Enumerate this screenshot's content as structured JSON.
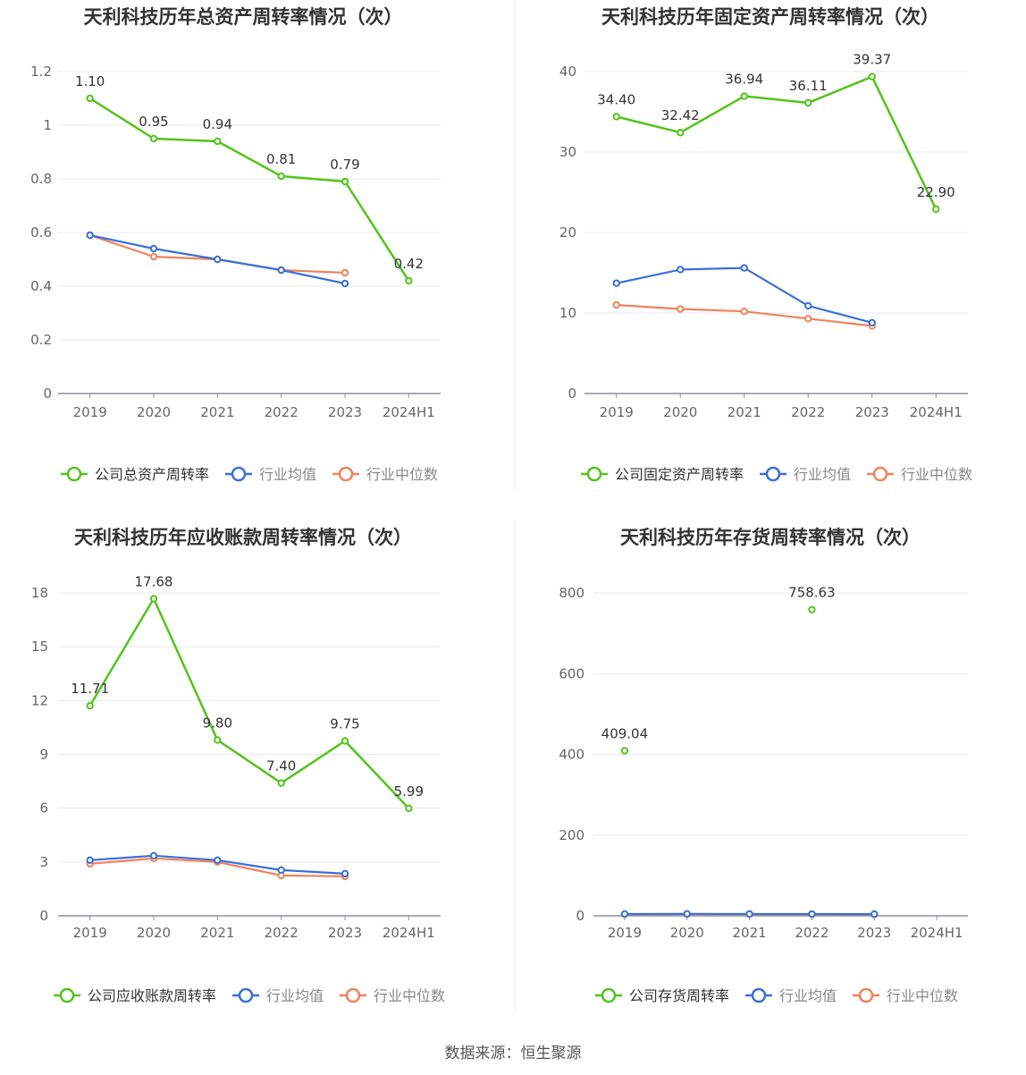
{
  "colors": {
    "company": "#52c41a",
    "industry_avg": "#3b6fd8",
    "industry_median": "#f0825a",
    "grid": "#e6e9f0",
    "axis": "#8c8f99",
    "tick_text": "#666666",
    "title": "#333333"
  },
  "footer": {
    "source": "数据来源：恒生聚源"
  },
  "chart_data": [
    {
      "type": "line",
      "title": "天利科技历年总资产周转率情况（次）",
      "categories": [
        "2019",
        "2020",
        "2021",
        "2022",
        "2023",
        "2024H1"
      ],
      "y_ticks": [
        "0",
        "0.2",
        "0.4",
        "0.6",
        "0.8",
        "1",
        "1.2"
      ],
      "ylim": [
        0,
        1.2
      ],
      "grid": true,
      "legend_position": "bottom",
      "series": [
        {
          "name": "公司总资产周转率",
          "role": "company",
          "values": [
            1.1,
            0.95,
            0.94,
            0.81,
            0.79,
            0.42
          ],
          "labels": [
            "1.10",
            "0.95",
            "0.94",
            "0.81",
            "0.79",
            "0.42"
          ]
        },
        {
          "name": "行业均值",
          "role": "avg",
          "values": [
            0.59,
            0.54,
            0.5,
            0.46,
            0.41,
            null
          ]
        },
        {
          "name": "行业中位数",
          "role": "median",
          "values": [
            0.59,
            0.51,
            0.5,
            0.46,
            0.45,
            null
          ]
        }
      ]
    },
    {
      "type": "line",
      "title": "天利科技历年固定资产周转率情况（次）",
      "categories": [
        "2019",
        "2020",
        "2021",
        "2022",
        "2023",
        "2024H1"
      ],
      "y_ticks": [
        "0",
        "10",
        "20",
        "30",
        "40"
      ],
      "ylim": [
        0,
        40
      ],
      "grid": true,
      "legend_position": "bottom",
      "series": [
        {
          "name": "公司固定资产周转率",
          "role": "company",
          "values": [
            34.4,
            32.42,
            36.94,
            36.11,
            39.37,
            22.9
          ],
          "labels": [
            "34.40",
            "32.42",
            "36.94",
            "36.11",
            "39.37",
            "22.90"
          ]
        },
        {
          "name": "行业均值",
          "role": "avg",
          "values": [
            13.7,
            15.4,
            15.6,
            10.9,
            8.8,
            null
          ]
        },
        {
          "name": "行业中位数",
          "role": "median",
          "values": [
            11.0,
            10.5,
            10.2,
            9.3,
            8.4,
            null
          ]
        }
      ]
    },
    {
      "type": "line",
      "title": "天利科技历年应收账款周转率情况（次）",
      "categories": [
        "2019",
        "2020",
        "2021",
        "2022",
        "2023",
        "2024H1"
      ],
      "y_ticks": [
        "0",
        "3",
        "6",
        "9",
        "12",
        "15",
        "18"
      ],
      "ylim": [
        0,
        18
      ],
      "grid": true,
      "legend_position": "bottom",
      "series": [
        {
          "name": "公司应收账款周转率",
          "role": "company",
          "values": [
            11.71,
            17.68,
            9.8,
            7.4,
            9.75,
            5.99
          ],
          "labels": [
            "11.71",
            "17.68",
            "9.80",
            "7.40",
            "9.75",
            "5.99"
          ]
        },
        {
          "name": "行业均值",
          "role": "avg",
          "values": [
            3.1,
            3.35,
            3.1,
            2.55,
            2.35,
            null
          ]
        },
        {
          "name": "行业中位数",
          "role": "median",
          "values": [
            2.9,
            3.2,
            3.0,
            2.25,
            2.2,
            null
          ]
        }
      ]
    },
    {
      "type": "line",
      "title": "天利科技历年存货周转率情况（次）",
      "categories": [
        "2019",
        "2020",
        "2021",
        "2022",
        "2023",
        "2024H1"
      ],
      "y_ticks": [
        "0",
        "200",
        "400",
        "600",
        "800"
      ],
      "ylim": [
        0,
        800
      ],
      "grid": true,
      "legend_position": "bottom",
      "series": [
        {
          "name": "公司存货周转率",
          "role": "company",
          "values": [
            409.04,
            null,
            null,
            758.63,
            null,
            null
          ],
          "labels": [
            "409.04",
            null,
            null,
            "758.63",
            null,
            null
          ]
        },
        {
          "name": "行业均值",
          "role": "avg",
          "values": [
            4.5,
            4.8,
            4.6,
            4.4,
            4.2,
            null
          ]
        },
        {
          "name": "行业中位数",
          "role": "median",
          "values": [
            3.8,
            4.0,
            3.9,
            3.7,
            3.6,
            null
          ]
        }
      ]
    }
  ]
}
